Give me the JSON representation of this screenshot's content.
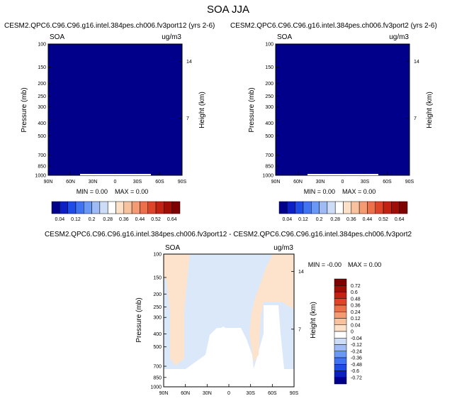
{
  "main_title": "SOA JJA",
  "chart_data": [
    {
      "type": "heatmap",
      "title": "CESM2.QPC6.C96.C96.g16.intel.384pes.ch006.fv3port12 (yrs 2-6)",
      "variable": "SOA",
      "units": "ug/m3",
      "ylabel": "Pressure (mb)",
      "ylabel_right": "Height (km)",
      "x_ticks": [
        "90N",
        "60N",
        "30N",
        "0",
        "30S",
        "60S",
        "90S"
      ],
      "y_ticks": [
        "100",
        "150",
        "200",
        "250",
        "300",
        "400",
        "500",
        "700",
        "850",
        "1000"
      ],
      "right_ticks": [
        "14",
        "7"
      ],
      "min_text": "MIN =   0.00",
      "max_text": "MAX =   0.00",
      "field_color": "#00008b",
      "colorbar_levels": [
        "0.04",
        "0.12",
        "0.2",
        "0.28",
        "0.36",
        "0.44",
        "0.52",
        "0.64"
      ],
      "colorbar_colors": [
        "#00008b",
        "#0b1fc4",
        "#1f4be6",
        "#3f73f2",
        "#6a98f5",
        "#9ebbf5",
        "#cddcf7",
        "#ffffff",
        "#fde0c8",
        "#f9c29e",
        "#f49b74",
        "#ec704a",
        "#dc4527",
        "#c22212",
        "#a00c06",
        "#7e0000"
      ]
    },
    {
      "type": "heatmap",
      "title": "CESM2.QPC6.C96.C96.g16.intel.384pes.ch006.fv3port2 (yrs 2-6)",
      "variable": "SOA",
      "units": "ug/m3",
      "ylabel": "Pressure (mb)",
      "ylabel_right": "Height (km)",
      "x_ticks": [
        "90N",
        "60N",
        "30N",
        "0",
        "30S",
        "60S",
        "90S"
      ],
      "y_ticks": [
        "100",
        "150",
        "200",
        "250",
        "300",
        "400",
        "500",
        "700",
        "850",
        "1000"
      ],
      "right_ticks": [
        "14",
        "7"
      ],
      "min_text": "MIN =   0.00",
      "max_text": "MAX =   0.00",
      "field_color": "#00008b",
      "colorbar_levels": [
        "0.04",
        "0.12",
        "0.2",
        "0.28",
        "0.36",
        "0.44",
        "0.52",
        "0.64"
      ],
      "colorbar_colors": [
        "#00008b",
        "#0b1fc4",
        "#1f4be6",
        "#3f73f2",
        "#6a98f5",
        "#9ebbf5",
        "#cddcf7",
        "#ffffff",
        "#fde0c8",
        "#f9c29e",
        "#f49b74",
        "#ec704a",
        "#dc4527",
        "#c22212",
        "#a00c06",
        "#7e0000"
      ]
    },
    {
      "type": "heatmap",
      "title": "CESM2.QPC6.C96.C96.g16.intel.384pes.ch006.fv3port12 - CESM2.QPC6.C96.C96.g16.intel.384pes.ch006.fv3port2",
      "variable": "SOA",
      "units": "ug/m3",
      "ylabel": "Pressure (mb)",
      "ylabel_right": "Height (km)",
      "x_ticks": [
        "90N",
        "60N",
        "30N",
        "0",
        "30S",
        "60S",
        "90S"
      ],
      "y_ticks": [
        "100",
        "150",
        "200",
        "250",
        "300",
        "400",
        "500",
        "700",
        "850",
        "1000"
      ],
      "right_ticks": [
        "14",
        "7"
      ],
      "min_text": "MIN =  -0.00",
      "max_text": "MAX =   0.00",
      "colorbar_levels": [
        "0.72",
        "0.6",
        "0.48",
        "0.36",
        "0.24",
        "0.12",
        "0.04",
        "0",
        "-0.04",
        "-0.12",
        "-0.24",
        "-0.36",
        "-0.48",
        "-0.6",
        "-0.72"
      ],
      "colorbar_colors": [
        "#7e0000",
        "#a00c06",
        "#c22212",
        "#dc4527",
        "#ec704a",
        "#f49b74",
        "#f9c29e",
        "#fde0c8",
        "#ffffff",
        "#cddcf7",
        "#9ebbf5",
        "#6a98f5",
        "#3f73f2",
        "#1f4be6",
        "#0b1fc4",
        "#00008b"
      ],
      "positive_region_color": "#fde3cc",
      "negative_region_color": "#dbe8fa"
    }
  ]
}
